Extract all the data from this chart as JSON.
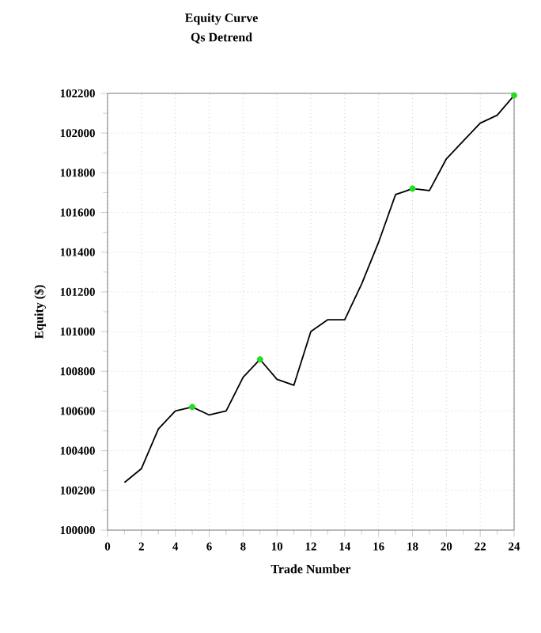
{
  "chart_data": {
    "type": "line",
    "title": "Equity Curve",
    "subtitle": "Qs Detrend",
    "xlabel": "Trade Number",
    "ylabel": "Equity ($)",
    "xlim": [
      0,
      24
    ],
    "xticks": [
      0,
      2,
      4,
      6,
      8,
      10,
      12,
      14,
      16,
      18,
      20,
      22,
      24
    ],
    "ylim": [
      100000,
      102200
    ],
    "yticks": [
      100000,
      100200,
      100400,
      100600,
      100800,
      101000,
      101200,
      101400,
      101600,
      101800,
      102000,
      102200
    ],
    "grid": true,
    "series": [
      {
        "color": "#000000",
        "marker": "none",
        "x": [
          1,
          2,
          3,
          4,
          5,
          6,
          7,
          8,
          9,
          10,
          11,
          12,
          13,
          14,
          15,
          16,
          17,
          18,
          19,
          20,
          21,
          22,
          23,
          24
        ],
        "values": [
          100240,
          100310,
          100510,
          100600,
          100620,
          100580,
          100600,
          100770,
          100860,
          100760,
          100730,
          101000,
          101060,
          101060,
          101240,
          101450,
          101690,
          101720,
          101710,
          101870,
          101960,
          102050,
          102090,
          102190
        ]
      },
      {
        "type": "scatter",
        "color": "#22dd22",
        "marker": "circle",
        "x": [
          5,
          9,
          18,
          24
        ],
        "values": [
          100620,
          100860,
          101720,
          102190
        ]
      }
    ]
  }
}
